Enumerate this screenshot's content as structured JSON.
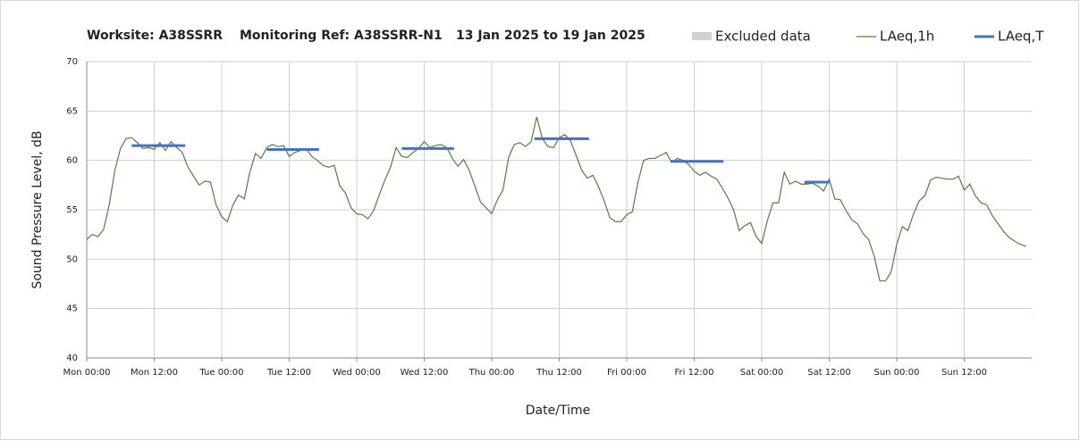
{
  "chart_data": {
    "type": "line",
    "title": [
      "Worksite: A38SSRR",
      "Monitoring Ref: A38SSRR-N1",
      "13 Jan 2025 to 19 Jan 2025"
    ],
    "xlabel": "Date/Time",
    "ylabel": "Sound Pressure Level, dB",
    "xlim": [
      0,
      168
    ],
    "xticks": [
      {
        "value": 0,
        "label": "Mon 00:00"
      },
      {
        "value": 12,
        "label": "Mon 12:00"
      },
      {
        "value": 24,
        "label": "Tue 00:00"
      },
      {
        "value": 36,
        "label": "Tue 12:00"
      },
      {
        "value": 48,
        "label": "Wed 00:00"
      },
      {
        "value": 60,
        "label": "Wed 12:00"
      },
      {
        "value": 72,
        "label": "Thu 00:00"
      },
      {
        "value": 84,
        "label": "Thu 12:00"
      },
      {
        "value": 96,
        "label": "Fri 00:00"
      },
      {
        "value": 108,
        "label": "Fri 12:00"
      },
      {
        "value": 120,
        "label": "Sat 00:00"
      },
      {
        "value": 132,
        "label": "Sat 12:00"
      },
      {
        "value": 144,
        "label": "Sun 00:00"
      },
      {
        "value": 156,
        "label": "Sun 12:00"
      }
    ],
    "ylim": [
      40,
      70
    ],
    "yticks": [
      40,
      45,
      50,
      55,
      60,
      65,
      70
    ],
    "grid": true,
    "legend": {
      "excluded": {
        "name": "Excluded data",
        "color": "#d0d0d0"
      }
    },
    "series": [
      {
        "name": "LAeq,1h",
        "color": "#5b7b3c",
        "x": [
          0,
          1,
          2,
          3,
          4,
          5,
          6,
          7,
          8,
          9,
          10,
          11,
          12,
          13,
          14,
          15,
          16,
          17,
          18,
          19,
          20,
          21,
          22,
          23,
          24,
          25,
          26,
          27,
          28,
          29,
          30,
          31,
          32,
          33,
          34,
          35,
          36,
          37,
          38,
          39,
          40,
          41,
          42,
          43,
          44,
          45,
          46,
          47,
          48,
          49,
          50,
          51,
          52,
          53,
          54,
          55,
          56,
          57,
          58,
          59,
          60,
          61,
          62,
          63,
          64,
          65,
          66,
          67,
          68,
          69,
          70,
          71,
          72,
          73,
          74,
          75,
          76,
          77,
          78,
          79,
          80,
          81,
          82,
          83,
          84,
          85,
          86,
          87,
          88,
          89,
          90,
          91,
          92,
          93,
          94,
          95,
          96,
          97,
          98,
          99,
          100,
          101,
          102,
          103,
          104,
          105,
          106,
          107,
          108,
          109,
          110,
          111,
          112,
          113,
          114,
          115,
          116,
          117,
          118,
          119,
          120,
          121,
          122,
          123,
          124,
          125,
          126,
          127,
          128,
          129,
          130,
          131,
          132,
          133,
          134,
          135,
          136,
          137,
          138,
          139,
          140,
          141,
          142,
          143,
          144,
          145,
          146,
          147,
          148,
          149,
          150,
          151,
          152,
          153,
          154,
          155,
          156,
          157,
          158,
          159,
          160,
          161,
          162,
          163,
          164,
          165,
          166,
          167
        ],
        "values": [
          52,
          52.5,
          52.3,
          53,
          55.5,
          59,
          61.2,
          62.2,
          62.3,
          61.8,
          61.2,
          61.3,
          61.1,
          61.8,
          61,
          61.9,
          61.3,
          60.8,
          59.3,
          58.4,
          57.5,
          57.9,
          57.8,
          55.5,
          54.3,
          53.8,
          55.5,
          56.5,
          56.1,
          58.8,
          60.7,
          60.2,
          61.3,
          61.6,
          61.4,
          61.5,
          60.4,
          60.8,
          61,
          61.2,
          60.4,
          60,
          59.5,
          59.3,
          59.5,
          57.4,
          56.7,
          55.2,
          54.6,
          54.5,
          54.1,
          54.9,
          56.5,
          58,
          59.3,
          61.3,
          60.4,
          60.3,
          60.8,
          61.2,
          61.9,
          61.3,
          61.5,
          61.6,
          61.3,
          60.2,
          59.4,
          60.1,
          59,
          57.4,
          55.8,
          55.2,
          54.6,
          56,
          57,
          60.3,
          61.6,
          61.8,
          61.4,
          61.9,
          64.4,
          62.2,
          61.4,
          61.3,
          62.3,
          62.6,
          62,
          60.5,
          59,
          58.2,
          58.5,
          57.3,
          55.9,
          54.2,
          53.8,
          53.8,
          54.5,
          54.8,
          57.8,
          60,
          60.2,
          60.2,
          60.5,
          60.8,
          59.8,
          60.2,
          60,
          59.6,
          58.9,
          58.5,
          58.8,
          58.4,
          58.1,
          57.2,
          56.2,
          55,
          52.9,
          53.4,
          53.7,
          52.3,
          51.6,
          53.9,
          55.7,
          55.7,
          58.8,
          57.6,
          57.9,
          57.6,
          57.6,
          57.7,
          57.4,
          56.9,
          58.1,
          56.1,
          56,
          54.9,
          54,
          53.6,
          52.6,
          52,
          50.3,
          47.8,
          47.8,
          48.7,
          51.5,
          53.3,
          52.9,
          54.6,
          55.9,
          56.4,
          58,
          58.3,
          58.2,
          58.1,
          58.1,
          58.4,
          57,
          57.6,
          56.4,
          55.7,
          55.5,
          54.4,
          53.6,
          52.8,
          52.2,
          51.8,
          51.5,
          51.3
        ]
      },
      {
        "name": "LAeq,T",
        "color": "#4472c4",
        "segments": [
          {
            "start": 8,
            "end": 17.5,
            "value": 61.5
          },
          {
            "start": 32,
            "end": 41.3,
            "value": 61.1
          },
          {
            "start": 56,
            "end": 65.3,
            "value": 61.2
          },
          {
            "start": 79.6,
            "end": 89.3,
            "value": 62.2
          },
          {
            "start": 103.8,
            "end": 113.2,
            "value": 59.9
          },
          {
            "start": 127.6,
            "end": 132,
            "value": 57.8
          }
        ]
      }
    ]
  }
}
